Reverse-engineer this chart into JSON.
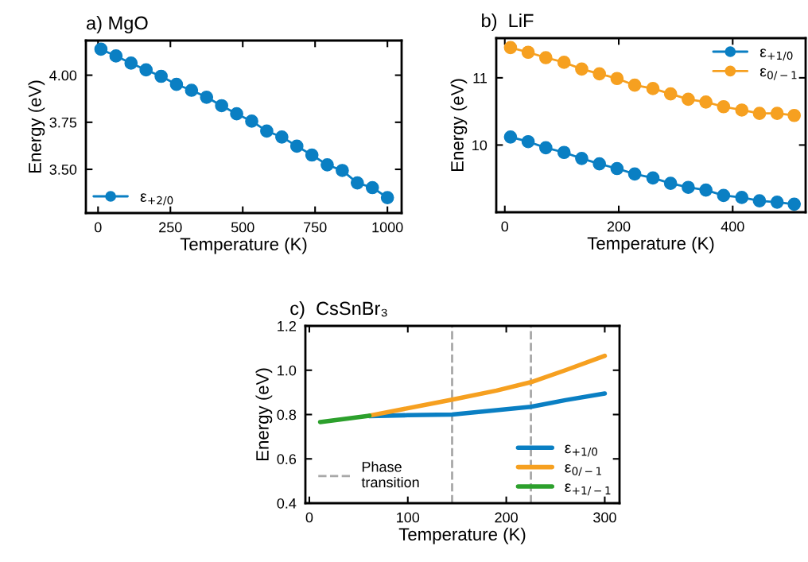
{
  "chart_data": [
    {
      "type": "line",
      "title": "a) MgO",
      "xlabel": "Temperature (K)",
      "ylabel": "Energy (eV)",
      "marker": "circle",
      "line_style": "solid",
      "legend": "lower left",
      "grid": false,
      "xlim": [
        -42,
        1049
      ],
      "ylim": [
        3.268,
        4.184
      ],
      "xticks": [
        0,
        250,
        500,
        750,
        1000
      ],
      "yticks": [
        {
          "value": 3.5,
          "label": "3.50"
        },
        {
          "value": 3.75,
          "label": "3.75"
        },
        {
          "value": 4.0,
          "label": "4.00"
        }
      ],
      "x": [
        10,
        62,
        114,
        166,
        218,
        271,
        323,
        375,
        427,
        479,
        531,
        583,
        635,
        687,
        739,
        792,
        844,
        896,
        948,
        1000
      ],
      "series": [
        {
          "name": "ε$_{+2/0}$",
          "color": "#0a7fc3",
          "values": [
            4.138,
            4.102,
            4.064,
            4.028,
            3.994,
            3.951,
            3.92,
            3.883,
            3.838,
            3.795,
            3.756,
            3.703,
            3.672,
            3.623,
            3.576,
            3.524,
            3.494,
            3.428,
            3.403,
            3.35
          ]
        }
      ]
    },
    {
      "type": "line",
      "title": "b)  LiF",
      "xlabel": "Temperature (K)",
      "ylabel": "Energy (eV)",
      "marker": "circle",
      "line_style": "solid",
      "legend": "upper right",
      "grid": false,
      "xlim": [
        -15,
        528
      ],
      "ylim": [
        9.0,
        11.59
      ],
      "xticks": [
        0,
        200,
        400
      ],
      "yticks": [
        10,
        11
      ],
      "x": [
        10,
        41,
        72,
        104,
        135,
        166,
        197,
        228,
        260,
        291,
        322,
        353,
        384,
        416,
        447,
        478,
        508
      ],
      "series": [
        {
          "name": "ε$_{+1/0}$",
          "color": "#0a7fc3",
          "values": [
            10.12,
            10.05,
            9.96,
            9.89,
            9.8,
            9.72,
            9.65,
            9.57,
            9.51,
            9.43,
            9.37,
            9.33,
            9.25,
            9.22,
            9.17,
            9.15,
            9.12
          ]
        },
        {
          "name": "ε$_{0/−1}$",
          "color": "#f6a020",
          "values": [
            11.45,
            11.38,
            11.3,
            11.23,
            11.13,
            11.06,
            10.99,
            10.89,
            10.84,
            10.76,
            10.68,
            10.64,
            10.57,
            10.52,
            10.47,
            10.47,
            10.44
          ]
        }
      ]
    },
    {
      "type": "line",
      "title": "c)  CsSnBr₃",
      "xlabel": "Temperature (K)",
      "ylabel": "Energy (eV)",
      "marker": "none",
      "line_style": "solid",
      "legend": "lower right",
      "grid": false,
      "xlim": [
        -4,
        315
      ],
      "ylim": [
        0.4,
        1.2
      ],
      "xticks": [
        0,
        100,
        200,
        300
      ],
      "yticks": [
        0.4,
        0.6,
        0.8,
        {
          "value": 1.0,
          "label": "1.0"
        },
        1.2
      ],
      "series": [
        {
          "name": "ε$_{+1/0}$",
          "color": "#0a7fc3",
          "x": [
            61,
            100,
            145,
            225,
            260,
            300
          ],
          "values": [
            0.793,
            0.797,
            0.8,
            0.835,
            0.865,
            0.895
          ]
        },
        {
          "name": "ε$_{0/−1}$",
          "color": "#f6a020",
          "x": [
            61,
            145,
            190,
            225,
            260,
            300
          ],
          "values": [
            0.795,
            0.867,
            0.908,
            0.946,
            1.0,
            1.065
          ]
        },
        {
          "name": "ε$_{+1/−1}$",
          "color": "#2ca02c",
          "x": [
            11,
            61
          ],
          "values": [
            0.766,
            0.795
          ]
        }
      ],
      "ref_lines": [
        {
          "axis": "x",
          "value": 145,
          "label": "Phase\ntransition",
          "color": "#a8a8a8",
          "line_style": "dashed"
        },
        {
          "axis": "x",
          "value": 225,
          "color": "#a8a8a8",
          "line_style": "dashed"
        }
      ]
    }
  ]
}
